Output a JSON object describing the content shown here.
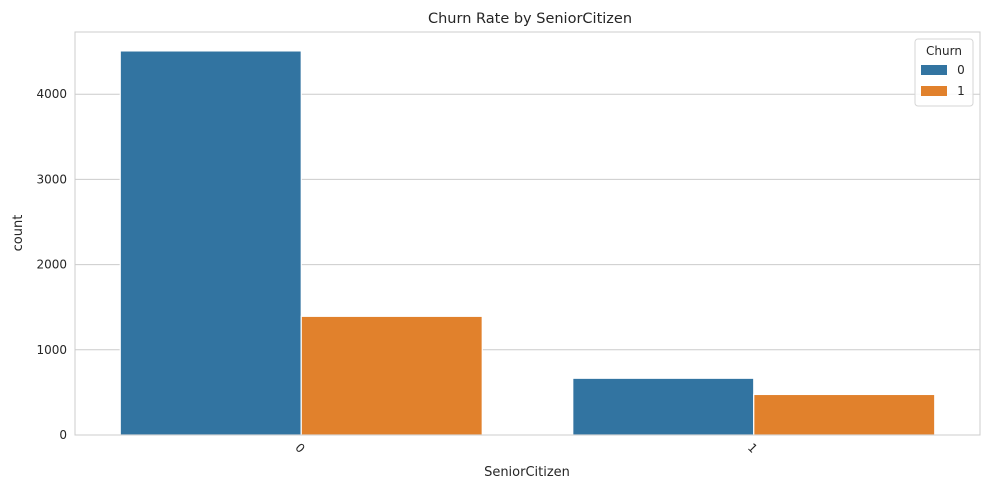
{
  "chart_data": {
    "type": "bar",
    "title": "Churn Rate by SeniorCitizen",
    "xlabel": "SeniorCitizen",
    "ylabel": "count",
    "categories": [
      "0",
      "1"
    ],
    "series": [
      {
        "name": "0",
        "values": [
          4508,
          666
        ],
        "color": "#3274a1"
      },
      {
        "name": "1",
        "values": [
          1393,
          476
        ],
        "color": "#e1812c"
      }
    ],
    "ylim": [
      0,
      4730
    ],
    "yticks": [
      0,
      1000,
      2000,
      3000,
      4000
    ],
    "legend": {
      "title": "Churn",
      "placement": "top-right"
    },
    "grid": true
  }
}
